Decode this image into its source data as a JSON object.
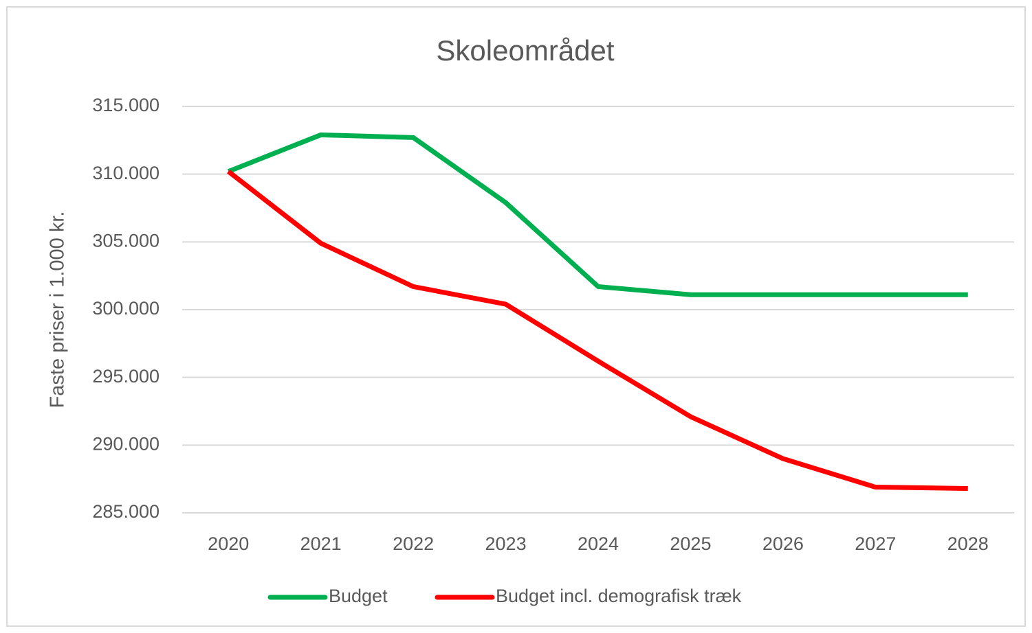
{
  "chart_data": {
    "type": "line",
    "title": "Skoleområdet",
    "y_label": "Faste priser i 1.000 kr.",
    "categories": [
      "2020",
      "2021",
      "2022",
      "2023",
      "2024",
      "2025",
      "2026",
      "2027",
      "2028"
    ],
    "series": [
      {
        "name": "Budget",
        "color": "#00b050",
        "values": [
          310200,
          312900,
          312700,
          307900,
          301700,
          301100,
          301100,
          301100,
          301100
        ]
      },
      {
        "name": "Budget incl. demografisk træk",
        "color": "#ff0000",
        "values": [
          310200,
          304900,
          301700,
          300400,
          296200,
          292100,
          289000,
          286900,
          286800
        ]
      }
    ],
    "ylim": [
      285000,
      315000
    ],
    "yticks": [
      {
        "value": 285000,
        "label": "285.000"
      },
      {
        "value": 290000,
        "label": "290.000"
      },
      {
        "value": 295000,
        "label": "295.000"
      },
      {
        "value": 300000,
        "label": "300.000"
      },
      {
        "value": 305000,
        "label": "305.000"
      },
      {
        "value": 310000,
        "label": "310.000"
      },
      {
        "value": 315000,
        "label": "315.000"
      }
    ],
    "grid": true,
    "legend": "bottom"
  }
}
